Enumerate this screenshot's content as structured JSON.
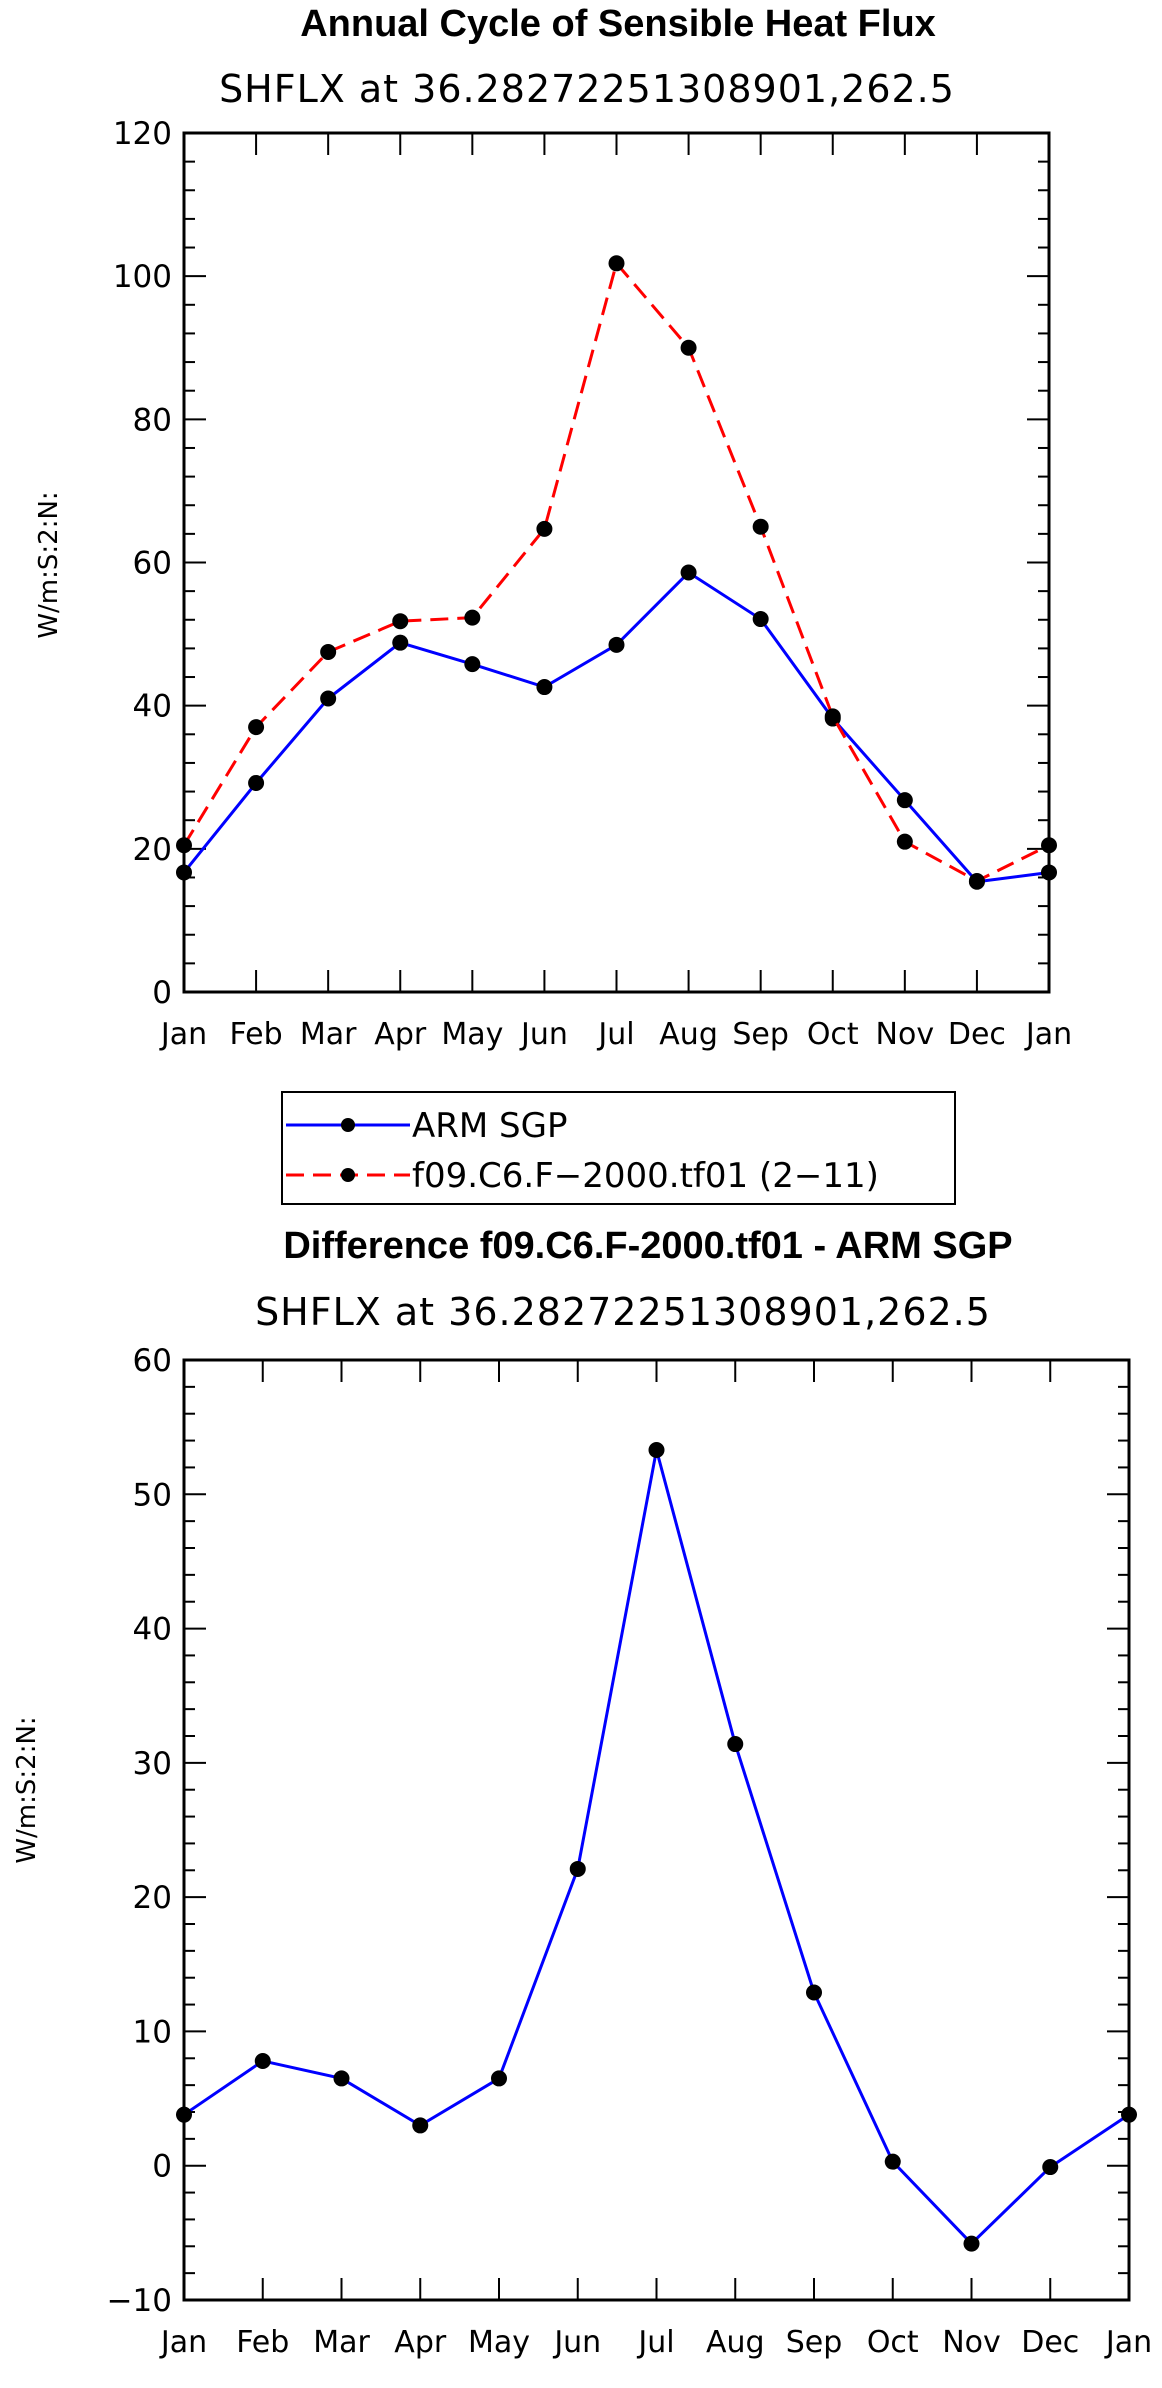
{
  "chart_data": [
    {
      "type": "line",
      "title": "Annual Cycle of Sensible Heat Flux",
      "subtitle": "SHFLX at 36.28272251308901,262.5",
      "ylabel": "W/m:S:2:N:",
      "xlabel": "",
      "ylim": [
        0,
        120
      ],
      "yticks": [
        0,
        20,
        40,
        60,
        80,
        100,
        120
      ],
      "categories": [
        "Jan",
        "Feb",
        "Mar",
        "Apr",
        "May",
        "Jun",
        "Jul",
        "Aug",
        "Sep",
        "Oct",
        "Nov",
        "Dec",
        "Jan"
      ],
      "series": [
        {
          "name": "ARM SGP",
          "color": "#0000ff",
          "dash": "solid",
          "values": [
            16.7,
            29.2,
            41.0,
            48.8,
            45.8,
            42.6,
            48.5,
            58.6,
            52.1,
            38.2,
            26.8,
            15.4,
            16.7
          ]
        },
        {
          "name": "f09.C6.F−2000.tf01 (2−11)",
          "color": "#ff0000",
          "dash": "dashed",
          "values": [
            20.5,
            37.0,
            47.5,
            51.8,
            52.3,
            64.7,
            101.8,
            90.0,
            65.0,
            38.5,
            21.0,
            15.5,
            20.5
          ]
        }
      ],
      "legend_position": "below"
    },
    {
      "type": "line",
      "title": "Difference f09.C6.F-2000.tf01 - ARM SGP",
      "subtitle": "SHFLX at 36.28272251308901,262.5",
      "ylabel": "W/m:S:2:N:",
      "xlabel": "",
      "ylim": [
        -10,
        60
      ],
      "yticks": [
        -10,
        0,
        10,
        20,
        30,
        40,
        50,
        60
      ],
      "categories": [
        "Jan",
        "Feb",
        "Mar",
        "Apr",
        "May",
        "Jun",
        "Jul",
        "Aug",
        "Sep",
        "Oct",
        "Nov",
        "Dec",
        "Jan"
      ],
      "series": [
        {
          "name": "Difference",
          "color": "#0000ff",
          "dash": "solid",
          "values": [
            3.8,
            7.8,
            6.5,
            3.0,
            6.5,
            22.1,
            53.3,
            31.4,
            12.9,
            0.3,
            -5.8,
            -0.1,
            3.8
          ]
        }
      ]
    }
  ]
}
